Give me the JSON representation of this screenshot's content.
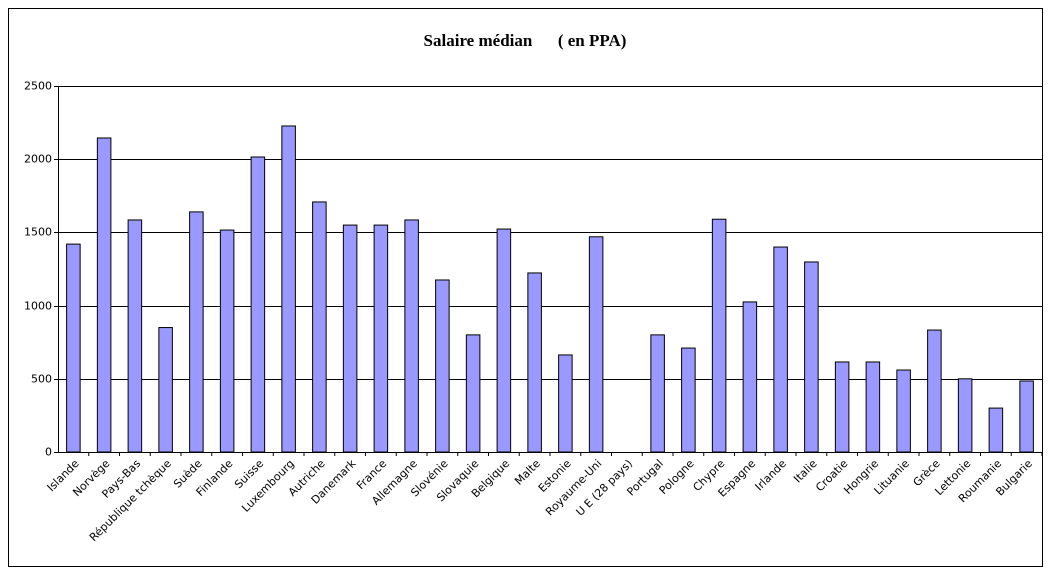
{
  "chart_data": {
    "type": "bar",
    "title": "Salaire médian      ( en PPA)",
    "categories": [
      "Islande",
      "Norvège",
      "Pays-Bas",
      "République tchèque",
      "Suède",
      "Finlande",
      "Suisse",
      "Luxembourg",
      "Autriche",
      "Danemark",
      "France",
      "Allemagne",
      "Slovénie",
      "Slovaquie",
      "Belgique",
      "Malte",
      "Estonie",
      "Royaume-Uni",
      "U E (28 pays)",
      "Portugal",
      "Pologne",
      "Chypre",
      "Espagne",
      "Irlande",
      "Italie",
      "Croatie",
      "Hongrie",
      "Lituanie",
      "Grèce",
      "Lettonie",
      "Roumanie",
      "Bulgarie"
    ],
    "values": [
      1420,
      2145,
      1585,
      850,
      1640,
      1516,
      2015,
      2227,
      1708,
      1550,
      1550,
      1585,
      1175,
      800,
      1523,
      1223,
      663,
      1470,
      null,
      800,
      710,
      1590,
      1025,
      1400,
      1298,
      615,
      615,
      560,
      833,
      500,
      300,
      485
    ],
    "color": "#9999ff",
    "ylim": [
      0,
      2500
    ],
    "yticks": [
      0,
      500,
      1000,
      1500,
      2000,
      2500
    ],
    "grid": true
  }
}
